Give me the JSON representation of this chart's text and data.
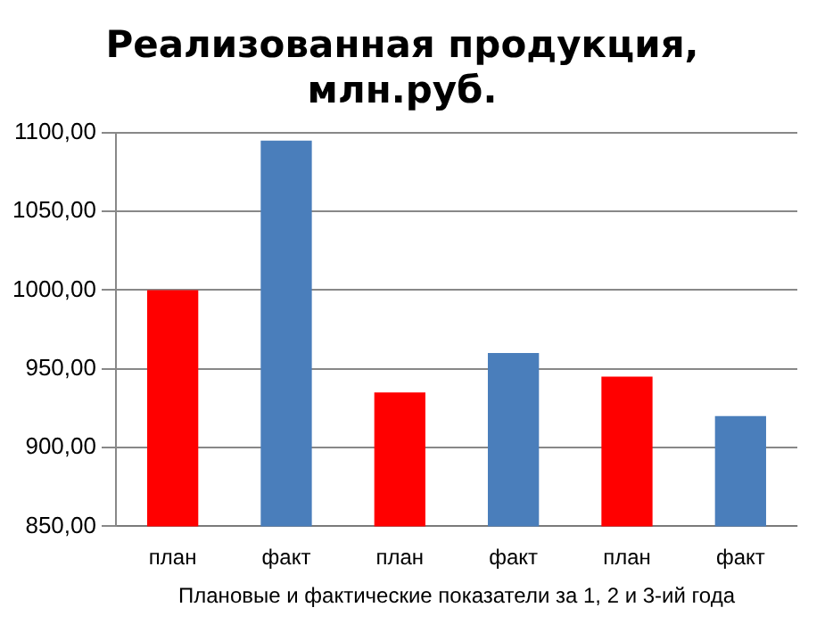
{
  "chart_data": {
    "type": "bar",
    "title": [
      "Реализованная продукция,",
      "млн.руб."
    ],
    "xlabel": "Плановые и фактические показатели за 1, 2 и 3-ий года",
    "categories": [
      "план",
      "факт",
      "план",
      "факт",
      "план",
      "факт"
    ],
    "values": [
      1000,
      1095,
      935,
      960,
      945,
      920
    ],
    "colors": [
      "#ff0000",
      "#4a7ebb",
      "#ff0000",
      "#4a7ebb",
      "#ff0000",
      "#4a7ebb"
    ],
    "ylim": [
      850,
      1100
    ],
    "yticks": [
      {
        "value": 850,
        "label": "850,00"
      },
      {
        "value": 900,
        "label": "900,00"
      },
      {
        "value": 950,
        "label": "950,00"
      },
      {
        "value": 1000,
        "label": "1000,00"
      },
      {
        "value": 1050,
        "label": "1050,00"
      },
      {
        "value": 1100,
        "label": "1100,00"
      }
    ],
    "grid": "y",
    "legend": false
  }
}
